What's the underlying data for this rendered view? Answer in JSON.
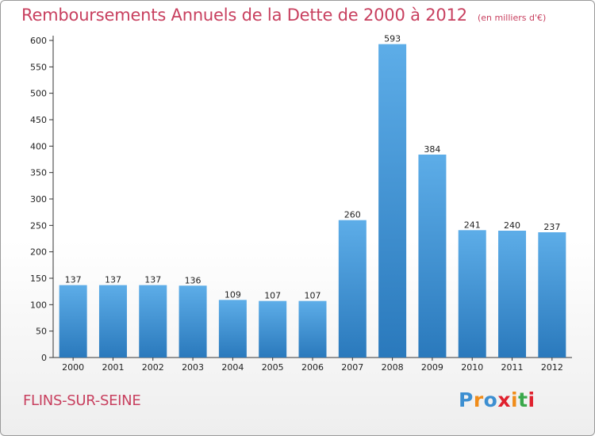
{
  "header": {
    "title": "Remboursements Annuels de la Dette de 2000 à 2012",
    "unit": "(en milliers d'€)"
  },
  "footer": {
    "city": "FLINS-SUR-SEINE",
    "logo": {
      "text": "Proxiti",
      "letters": [
        {
          "ch": "P",
          "color": "#3d8fd1"
        },
        {
          "ch": "r",
          "color": "#f08c1a"
        },
        {
          "ch": "o",
          "color": "#3d8fd1"
        },
        {
          "ch": "x",
          "color": "#e0212e"
        },
        {
          "ch": "i",
          "color": "#f08c1a"
        },
        {
          "ch": "t",
          "color": "#3aa84b"
        },
        {
          "ch": "i",
          "color": "#e0212e"
        }
      ]
    }
  },
  "chart_data": {
    "type": "bar",
    "title": "Remboursements Annuels de la Dette de 2000 à 2012",
    "subtitle": "(en milliers d'€)",
    "categories": [
      "2000",
      "2001",
      "2002",
      "2003",
      "2004",
      "2005",
      "2006",
      "2007",
      "2008",
      "2009",
      "2010",
      "2011",
      "2012"
    ],
    "values": [
      137,
      137,
      137,
      136,
      109,
      107,
      107,
      260,
      593,
      384,
      241,
      240,
      237
    ],
    "xlabel": "",
    "ylabel": "",
    "ylim": [
      0,
      600
    ],
    "yticks": [
      0,
      50,
      100,
      150,
      200,
      250,
      300,
      350,
      400,
      450,
      500,
      550,
      600
    ],
    "grid": false,
    "colors": {
      "bar_top": "#5dade8",
      "bar_bottom": "#2a79bc",
      "axis": "#333333",
      "title": "#c8405f"
    }
  }
}
